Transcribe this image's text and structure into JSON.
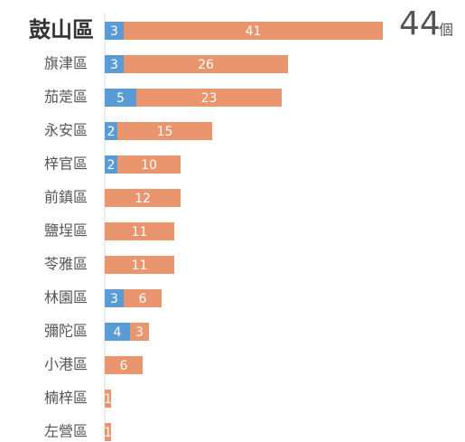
{
  "chart_data": {
    "type": "stacked-bar-horizontal",
    "categories": [
      "鼓山區",
      "旗津區",
      "茄萣區",
      "永安區",
      "梓官區",
      "前鎮區",
      "鹽埕區",
      "苓雅區",
      "林園區",
      "彌陀區",
      "小港區",
      "楠梓區",
      "左營區"
    ],
    "series": [
      {
        "color": "#5b9bd5",
        "values": [
          3,
          3,
          5,
          2,
          2,
          null,
          null,
          null,
          3,
          4,
          null,
          null,
          null
        ]
      },
      {
        "color": "#e9956e",
        "values": [
          41,
          26,
          23,
          15,
          10,
          12,
          11,
          11,
          6,
          3,
          6,
          1,
          1
        ]
      }
    ],
    "annotation": {
      "value": "44",
      "unit": "個"
    }
  }
}
